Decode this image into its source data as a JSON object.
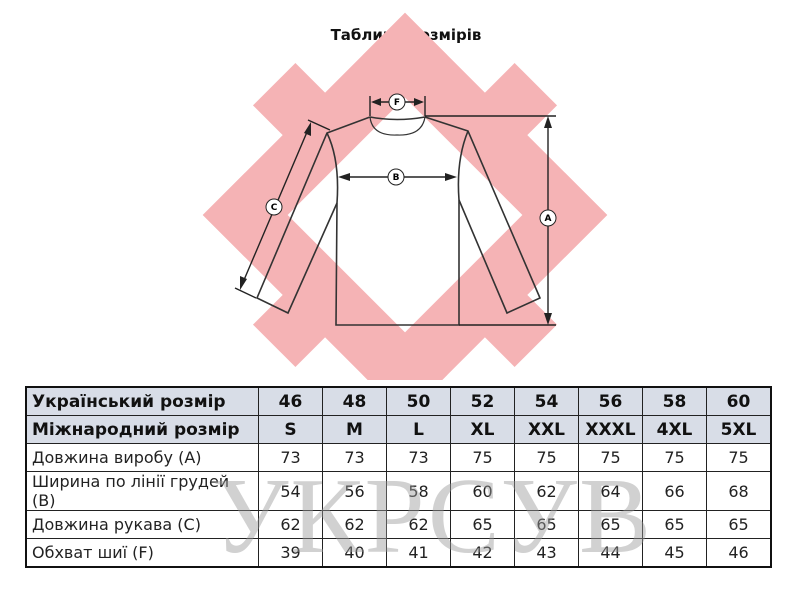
{
  "title": "Таблиця розмірів",
  "diagram": {
    "labels": {
      "a": "A",
      "b": "B",
      "c": "C",
      "f": "F"
    },
    "logo_color": "#f5b3b5"
  },
  "watermark": "УКРСУВ",
  "table": {
    "header_bg": "#d8dde7",
    "rows": [
      {
        "label": "Український розмір",
        "values": [
          "46",
          "48",
          "50",
          "52",
          "54",
          "56",
          "58",
          "60"
        ]
      },
      {
        "label": "Міжнародний розмір",
        "values": [
          "S",
          "M",
          "L",
          "XL",
          "XXL",
          "XXXL",
          "4XL",
          "5XL"
        ]
      },
      {
        "label": "Довжина виробу (А)",
        "values": [
          "73",
          "73",
          "73",
          "75",
          "75",
          "75",
          "75",
          "75"
        ]
      },
      {
        "label": "Ширина по лінії грудей (В)",
        "values": [
          "54",
          "56",
          "58",
          "60",
          "62",
          "64",
          "66",
          "68"
        ]
      },
      {
        "label": "Довжина рукава (С)",
        "values": [
          "62",
          "62",
          "62",
          "65",
          "65",
          "65",
          "65",
          "65"
        ]
      },
      {
        "label": "Обхват шиї (F)",
        "values": [
          "39",
          "40",
          "41",
          "42",
          "43",
          "44",
          "45",
          "46"
        ]
      }
    ]
  }
}
